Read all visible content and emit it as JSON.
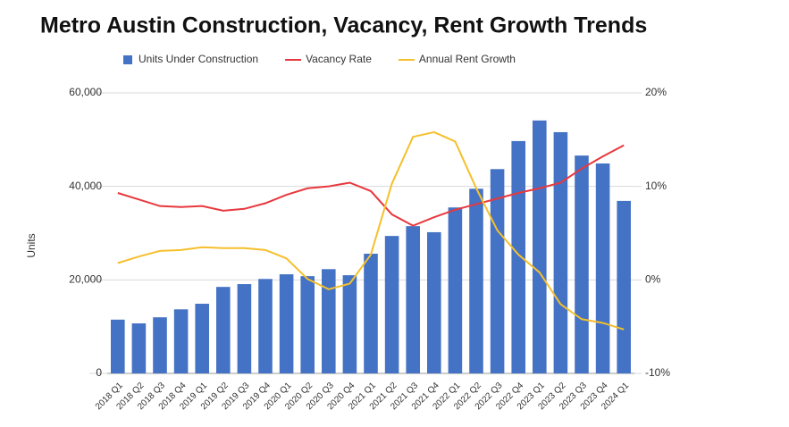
{
  "chart_data": {
    "type": "bar",
    "title": "Metro Austin Construction, Vacancy, Rent Growth Trends",
    "y_label": "Units",
    "categories": [
      "2018 Q1",
      "2018 Q2",
      "2018 Q3",
      "2018 Q4",
      "2019 Q1",
      "2019 Q2",
      "2019 Q3",
      "2019 Q4",
      "2020 Q1",
      "2020 Q2",
      "2020 Q3",
      "2020 Q4",
      "2021 Q1",
      "2021 Q2",
      "2021 Q3",
      "2021 Q4",
      "2022 Q1",
      "2022 Q2",
      "2022 Q3",
      "2022 Q4",
      "2023 Q1",
      "2023 Q2",
      "2023 Q3",
      "2023 Q4",
      "2024 Q1"
    ],
    "series": [
      {
        "name": "Units Under Construction",
        "type": "bar",
        "color": "#4472c4",
        "values": [
          11500,
          10700,
          12000,
          13700,
          14900,
          18500,
          19100,
          20200,
          21200,
          20800,
          22300,
          21000,
          25600,
          29400,
          31500,
          30200,
          35500,
          39500,
          43700,
          49700,
          54100,
          51600,
          46600,
          44900,
          36900
        ]
      },
      {
        "name": "Vacancy Rate",
        "type": "line",
        "axis": "y2",
        "color": "#e8383d",
        "values": [
          9.3,
          8.6,
          7.9,
          7.8,
          7.9,
          7.4,
          7.6,
          8.2,
          9.1,
          9.8,
          10.0,
          10.4,
          9.5,
          7.0,
          5.8,
          6.7,
          7.5,
          8.1,
          8.7,
          9.3,
          9.8,
          10.4,
          11.9,
          13.2,
          14.4
        ]
      },
      {
        "name": "Annual Rent Growth",
        "type": "line",
        "axis": "y2",
        "color": "#f5c02d",
        "values": [
          1.8,
          2.5,
          3.1,
          3.2,
          3.5,
          3.4,
          3.4,
          3.2,
          2.3,
          0.1,
          -1.0,
          -0.4,
          2.7,
          10.3,
          15.3,
          15.8,
          14.8,
          9.8,
          5.3,
          2.7,
          0.8,
          -2.6,
          -4.2,
          -4.6,
          -5.3
        ]
      }
    ],
    "ylim": [
      0,
      60000
    ],
    "yticks": [
      0,
      {
        "value": 20000,
        "label": "20,000"
      },
      {
        "value": 40000,
        "label": "40,000"
      },
      {
        "value": 60000,
        "label": "60,000"
      }
    ],
    "y2lim": [
      -10,
      20
    ],
    "y2ticks": [
      {
        "value": -10,
        "label": "-10%"
      },
      {
        "value": 0,
        "label": "0%"
      },
      {
        "value": 10,
        "label": "10%"
      },
      {
        "value": 20,
        "label": "20%"
      }
    ],
    "grid": true,
    "legend": "top"
  }
}
